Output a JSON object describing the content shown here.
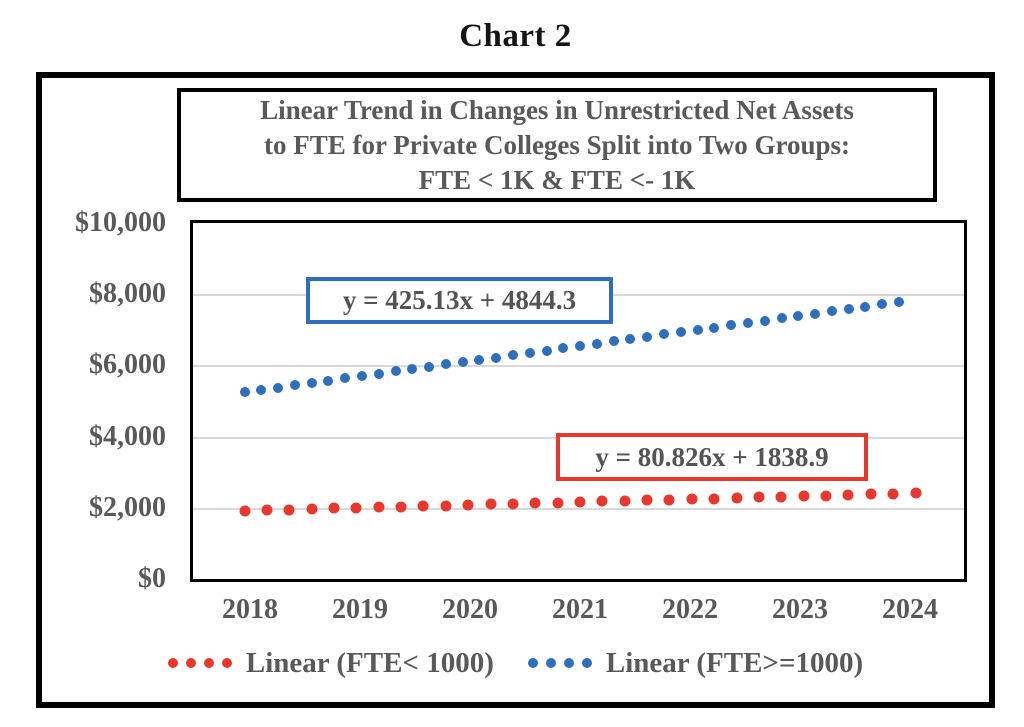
{
  "page": {
    "title": "Chart 2"
  },
  "chart": {
    "title_lines": [
      "Linear Trend in Changes in Unrestricted Net Assets",
      "to FTE for Private Colleges Split into Two Groups:",
      "FTE < 1K & FTE <- 1K"
    ],
    "colors": {
      "red_series": "#e8382d",
      "blue_series": "#2e6fbd",
      "text_gray": "#595959",
      "gridline": "#d9d9d9",
      "border": "#000000"
    }
  },
  "chart_data": {
    "type": "line",
    "subtype": "dotted-trendlines",
    "title": "Linear Trend in Changes in Unrestricted Net Assets to FTE for Private Colleges Split into Two Groups: FTE < 1K & FTE <- 1K",
    "xlabel": "",
    "ylabel": "",
    "categories": [
      "2018",
      "2019",
      "2020",
      "2021",
      "2022",
      "2023",
      "2024"
    ],
    "y_ticks": [
      "$10,000",
      "$8,000",
      "$6,000",
      "$4,000",
      "$2,000",
      "$0"
    ],
    "ylim": [
      0,
      10000
    ],
    "y_tick_step": 2000,
    "grid": "horizontal",
    "legend_position": "bottom",
    "series": [
      {
        "name": "Linear (FTE< 1000)",
        "color": "#e8382d",
        "style": "round-dot",
        "equation": "y = 80.826x + 1838.9",
        "slope": 80.826,
        "intercept": 1838.9,
        "values": [
          1919.7,
          2000.6,
          2081.4,
          2162.2,
          2243.0,
          2323.8,
          2404.7
        ],
        "x_start_frac": 0.95,
        "x_end_frac": 7.05,
        "dot_count": 31,
        "dot_size": 11
      },
      {
        "name": "Linear (FTE>=1000)",
        "color": "#2e6fbd",
        "style": "round-dot",
        "equation": "y = 425.13x + 4844.3",
        "slope": 425.13,
        "intercept": 4844.3,
        "values": [
          5269.4,
          5694.6,
          6119.7,
          6544.8,
          6969.9,
          7395.1,
          7820.2
        ],
        "x_start_frac": 0.95,
        "x_end_frac": 6.9,
        "dot_count": 40,
        "dot_size": 10
      }
    ],
    "annotations": [
      {
        "text": "y = 425.13x + 4844.3",
        "series": "Linear (FTE>=1000)",
        "box_color": "#2e6fbd"
      },
      {
        "text": "y = 80.826x + 1838.9",
        "series": "Linear (FTE< 1000)",
        "box_color": "#e8382d"
      }
    ]
  }
}
